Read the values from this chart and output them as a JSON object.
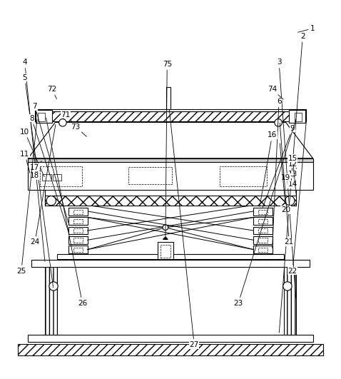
{
  "bg_color": "#ffffff",
  "line_color": "#000000",
  "figsize": [
    4.78,
    5.31
  ],
  "dpi": 100,
  "label_positions": {
    "1": [
      0.92,
      0.975,
      0.87,
      0.962
    ],
    "2": [
      0.89,
      0.952,
      0.82,
      0.072
    ],
    "3": [
      0.82,
      0.875,
      0.87,
      0.175
    ],
    "4": [
      0.07,
      0.875,
      0.13,
      0.282
    ],
    "5": [
      0.07,
      0.83,
      0.155,
      0.205
    ],
    "6": [
      0.82,
      0.76,
      0.8,
      0.322
    ],
    "7": [
      0.1,
      0.745,
      0.2,
      0.398
    ],
    "8": [
      0.09,
      0.71,
      0.2,
      0.372
    ],
    "9": [
      0.86,
      0.68,
      0.77,
      0.442
    ],
    "10": [
      0.07,
      0.67,
      0.13,
      0.532
    ],
    "11": [
      0.07,
      0.605,
      0.09,
      0.532
    ],
    "12": [
      0.86,
      0.575,
      0.872,
      0.562
    ],
    "13": [
      0.86,
      0.545,
      0.872,
      0.547
    ],
    "14": [
      0.86,
      0.515,
      0.872,
      0.512
    ],
    "15": [
      0.86,
      0.592,
      0.872,
      0.472
    ],
    "16": [
      0.8,
      0.66,
      0.762,
      0.444
    ],
    "17": [
      0.1,
      0.565,
      0.12,
      0.584
    ],
    "18": [
      0.1,
      0.54,
      0.12,
      0.562
    ],
    "19": [
      0.84,
      0.535,
      0.862,
      0.537
    ],
    "20": [
      0.84,
      0.44,
      0.822,
      0.642
    ],
    "21": [
      0.85,
      0.345,
      0.822,
      0.702
    ],
    "22": [
      0.86,
      0.26,
      0.902,
      0.717
    ],
    "23": [
      0.7,
      0.165,
      0.872,
      0.712
    ],
    "24": [
      0.1,
      0.345,
      0.162,
      0.697
    ],
    "25": [
      0.06,
      0.26,
      0.107,
      0.712
    ],
    "26": [
      0.24,
      0.165,
      0.132,
      0.717
    ],
    "27": [
      0.57,
      0.042,
      0.496,
      0.74
    ],
    "71": [
      0.19,
      0.72,
      0.227,
      0.682
    ],
    "72": [
      0.15,
      0.795,
      0.167,
      0.762
    ],
    "73": [
      0.22,
      0.685,
      0.257,
      0.652
    ],
    "74": [
      0.8,
      0.795,
      0.837,
      0.762
    ],
    "75": [
      0.49,
      0.87,
      0.485,
      0.352
    ]
  }
}
